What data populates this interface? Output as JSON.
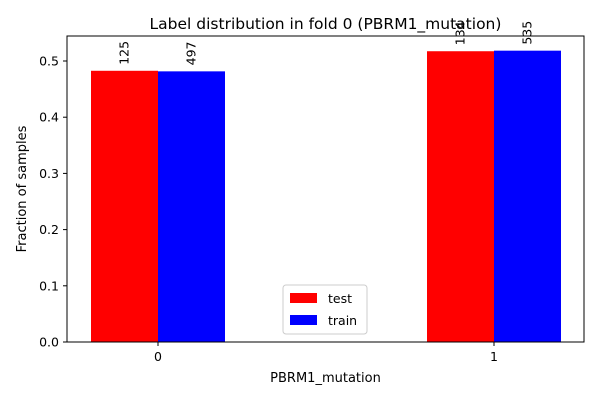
{
  "chart_data": {
    "type": "bar",
    "title": "Label distribution in fold 0 (PBRM1_mutation)",
    "xlabel": "PBRM1_mutation",
    "ylabel": "Fraction of samples",
    "categories": [
      "0",
      "1"
    ],
    "series": [
      {
        "name": "test",
        "color": "#ff0000",
        "values": [
          0.4826,
          0.5174
        ],
        "labels": [
          "125",
          "134"
        ]
      },
      {
        "name": "train",
        "color": "#0000ff",
        "values": [
          0.4816,
          0.5184
        ],
        "labels": [
          "497",
          "535"
        ]
      }
    ],
    "ylim": [
      0,
      0.5445
    ],
    "yticks": [
      "0.0",
      "0.1",
      "0.2",
      "0.3",
      "0.4",
      "0.5"
    ],
    "grid": false,
    "legend_position": "lower center"
  }
}
